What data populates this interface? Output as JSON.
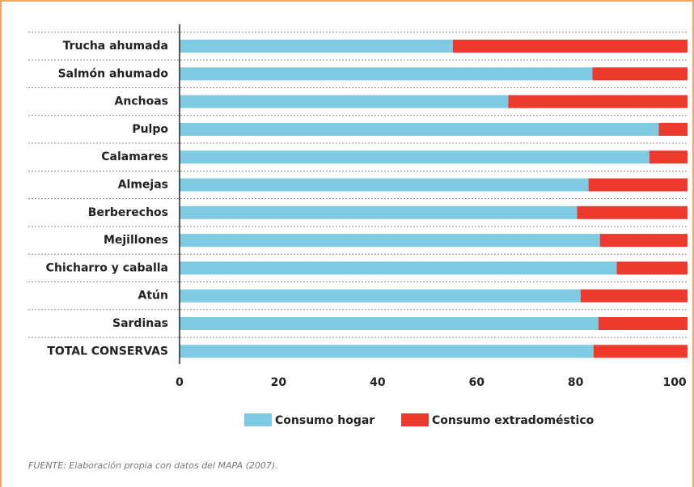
{
  "chart_data": {
    "type": "stacked_barh",
    "categories": [
      "Trucha ahumada",
      "Salmón ahumado",
      "Anchoas",
      "Pulpo",
      "Calamares",
      "Almejas",
      "Berberechos",
      "Mejillones",
      "Chicharro y caballa",
      "Atún",
      "Sardinas",
      "TOTAL CONSERVAS"
    ],
    "series": [
      {
        "name": "Consumo hogar",
        "color": "#7ecbe3",
        "values": [
          55.2,
          83.4,
          66.4,
          96.8,
          94.9,
          82.6,
          80.3,
          84.9,
          88.3,
          81.0,
          84.6,
          83.6
        ]
      },
      {
        "name": "Consumo extradoméstico",
        "color": "#ee3a2e",
        "values": [
          47.4,
          19.2,
          36.2,
          5.8,
          7.7,
          20.0,
          22.3,
          17.7,
          14.3,
          21.6,
          18.0,
          19.0
        ]
      }
    ],
    "xlim": [
      0,
      102.6
    ],
    "xticks": [
      0,
      20,
      40,
      60,
      80,
      100
    ],
    "source": "FUENTE: Elaboración propia con datos del MAPA (2007)."
  }
}
